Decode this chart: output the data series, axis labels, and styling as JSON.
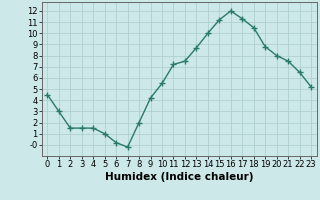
{
  "x": [
    0,
    1,
    2,
    3,
    4,
    5,
    6,
    7,
    8,
    9,
    10,
    11,
    12,
    13,
    14,
    15,
    16,
    17,
    18,
    19,
    20,
    21,
    22,
    23
  ],
  "y": [
    4.5,
    3.0,
    1.5,
    1.5,
    1.5,
    1.0,
    0.2,
    -0.2,
    2.0,
    4.2,
    5.5,
    7.2,
    7.5,
    8.7,
    10.0,
    11.2,
    12.0,
    11.3,
    10.5,
    8.8,
    8.0,
    7.5,
    6.5,
    5.2
  ],
  "line_color": "#2a7a6a",
  "marker": "+",
  "marker_size": 4,
  "marker_linewidth": 1.0,
  "bg_color": "#cce8e8",
  "grid_color": "#aacccc",
  "xlabel": "Humidex (Indice chaleur)",
  "xlabel_fontsize": 7.5,
  "tick_fontsize": 6,
  "xlim": [
    -0.5,
    23.5
  ],
  "ylim": [
    -1.0,
    12.8
  ],
  "yticks": [
    0,
    1,
    2,
    3,
    4,
    5,
    6,
    7,
    8,
    9,
    10,
    11,
    12
  ],
  "ytick_labels": [
    "-0",
    "1",
    "2",
    "3",
    "4",
    "5",
    "6",
    "7",
    "8",
    "9",
    "10",
    "11",
    "12"
  ],
  "xticks": [
    0,
    1,
    2,
    3,
    4,
    5,
    6,
    7,
    8,
    9,
    10,
    11,
    12,
    13,
    14,
    15,
    16,
    17,
    18,
    19,
    20,
    21,
    22,
    23
  ],
  "spine_color": "#666666",
  "linewidth": 1.0
}
